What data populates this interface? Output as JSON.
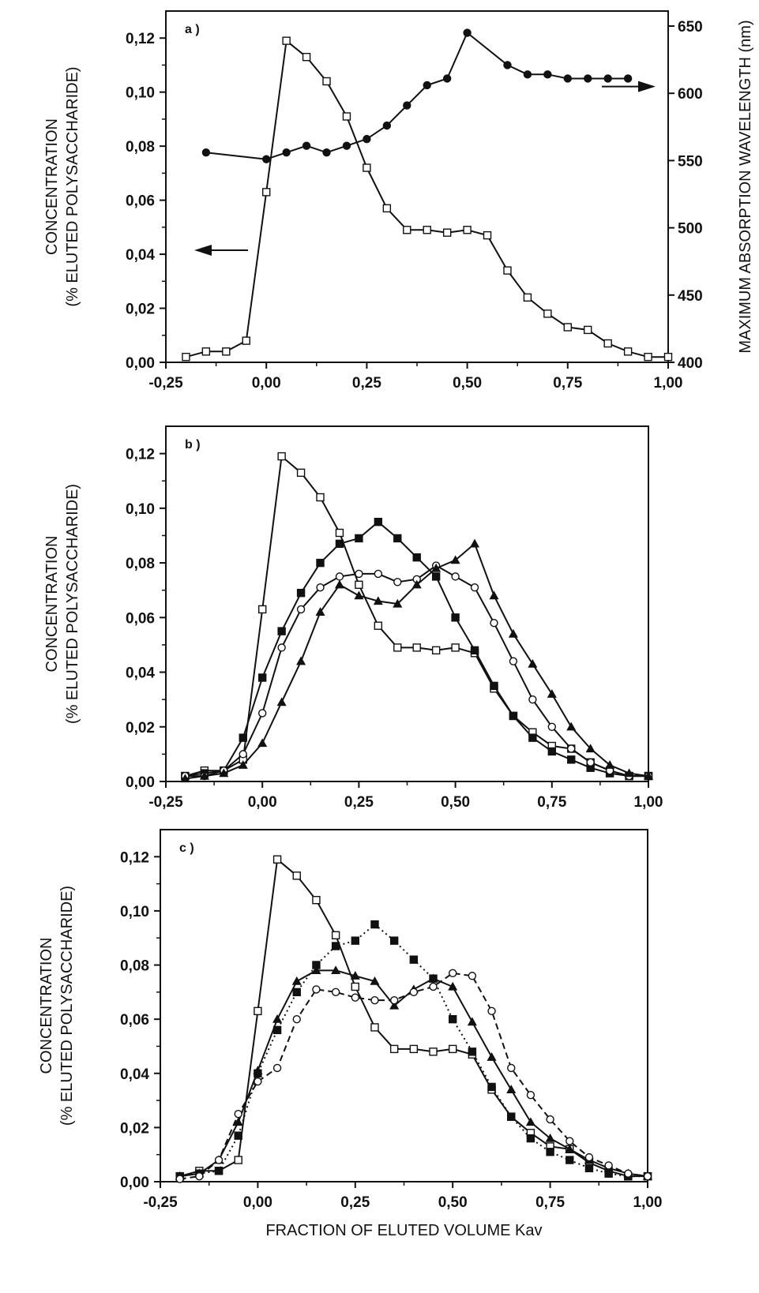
{
  "chart_data": [
    {
      "type": "line",
      "panel_label": "a )",
      "ylabel": "CONCENTRATION",
      "ylabel2": "(% ELUTED POLYSACCHARIDE)",
      "y2label": "MAXIMUM ABSORPTION WAVELENGTH (nm)",
      "xlim": [
        -0.25,
        1.0
      ],
      "ylim": [
        0,
        0.13
      ],
      "y2lim": [
        400,
        650
      ],
      "xticks": [
        "-0,25",
        "0,00",
        "0,25",
        "0,50",
        "0,75",
        "1,00"
      ],
      "yticks": [
        "0,00",
        "0,02",
        "0,04",
        "0,06",
        "0,08",
        "0,10",
        "0,12"
      ],
      "y2ticks": [
        "400",
        "450",
        "500",
        "550",
        "600",
        "650"
      ],
      "annotations": [
        "arrow-left",
        "arrow-right"
      ],
      "series": [
        {
          "marker": "open-square",
          "line": "solid",
          "axis": "left",
          "x": [
            -0.2,
            -0.15,
            -0.1,
            -0.05,
            0.0,
            0.05,
            0.1,
            0.15,
            0.2,
            0.25,
            0.3,
            0.35,
            0.4,
            0.45,
            0.5,
            0.55,
            0.6,
            0.65,
            0.7,
            0.75,
            0.8,
            0.85,
            0.9,
            0.95,
            1.0
          ],
          "y": [
            0.002,
            0.004,
            0.004,
            0.008,
            0.063,
            0.119,
            0.113,
            0.104,
            0.091,
            0.072,
            0.057,
            0.049,
            0.049,
            0.048,
            0.049,
            0.047,
            0.034,
            0.024,
            0.018,
            0.013,
            0.012,
            0.007,
            0.004,
            0.002,
            0.002
          ]
        },
        {
          "marker": "filled-circle",
          "line": "solid",
          "axis": "right",
          "x": [
            -0.15,
            0.0,
            0.05,
            0.1,
            0.15,
            0.2,
            0.25,
            0.3,
            0.35,
            0.4,
            0.45,
            0.5,
            0.6,
            0.65,
            0.7,
            0.75,
            0.8,
            0.85,
            0.9
          ],
          "y": [
            556,
            551,
            556,
            561,
            556,
            561,
            566,
            576,
            591,
            606,
            611,
            645,
            621,
            614,
            614,
            611,
            611,
            611,
            611
          ]
        }
      ]
    },
    {
      "type": "line",
      "panel_label": "b )",
      "ylabel": "CONCENTRATION",
      "ylabel2": "(% ELUTED POLYSACCHARIDE)",
      "xlim": [
        -0.25,
        1.0
      ],
      "ylim": [
        0,
        0.13
      ],
      "xticks": [
        "-0,25",
        "0,00",
        "0,25",
        "0,50",
        "0,75",
        "1,00"
      ],
      "yticks": [
        "0,00",
        "0,02",
        "0,04",
        "0,06",
        "0,08",
        "0,10",
        "0,12"
      ],
      "series": [
        {
          "marker": "open-square",
          "line": "solid",
          "x": [
            -0.2,
            -0.15,
            -0.1,
            -0.05,
            0.0,
            0.05,
            0.1,
            0.15,
            0.2,
            0.25,
            0.3,
            0.35,
            0.4,
            0.45,
            0.5,
            0.55,
            0.6,
            0.65,
            0.7,
            0.75,
            0.8,
            0.85,
            0.9,
            0.95,
            1.0
          ],
          "y": [
            0.002,
            0.004,
            0.004,
            0.008,
            0.063,
            0.119,
            0.113,
            0.104,
            0.091,
            0.072,
            0.057,
            0.049,
            0.049,
            0.048,
            0.049,
            0.047,
            0.034,
            0.024,
            0.018,
            0.013,
            0.012,
            0.007,
            0.004,
            0.002,
            0.002
          ]
        },
        {
          "marker": "filled-square",
          "line": "solid",
          "x": [
            -0.2,
            -0.15,
            -0.1,
            -0.05,
            0.0,
            0.05,
            0.1,
            0.15,
            0.2,
            0.25,
            0.3,
            0.35,
            0.4,
            0.45,
            0.5,
            0.55,
            0.6,
            0.65,
            0.7,
            0.75,
            0.8,
            0.85,
            0.9,
            0.95,
            1.0
          ],
          "y": [
            0.002,
            0.003,
            0.004,
            0.016,
            0.038,
            0.055,
            0.069,
            0.08,
            0.087,
            0.089,
            0.095,
            0.089,
            0.082,
            0.075,
            0.06,
            0.048,
            0.035,
            0.024,
            0.016,
            0.011,
            0.008,
            0.005,
            0.003,
            0.002,
            0.002
          ]
        },
        {
          "marker": "open-circle",
          "line": "solid",
          "x": [
            -0.2,
            -0.15,
            -0.1,
            -0.05,
            0.0,
            0.05,
            0.1,
            0.15,
            0.2,
            0.25,
            0.3,
            0.35,
            0.4,
            0.45,
            0.5,
            0.55,
            0.6,
            0.65,
            0.7,
            0.75,
            0.8,
            0.85,
            0.9,
            0.95,
            1.0
          ],
          "y": [
            0.002,
            0.002,
            0.004,
            0.01,
            0.025,
            0.049,
            0.063,
            0.071,
            0.075,
            0.076,
            0.076,
            0.073,
            0.074,
            0.079,
            0.075,
            0.071,
            0.058,
            0.044,
            0.03,
            0.02,
            0.012,
            0.007,
            0.004,
            0.002,
            0.002
          ]
        },
        {
          "marker": "filled-triangle",
          "line": "solid",
          "x": [
            -0.2,
            -0.15,
            -0.1,
            -0.05,
            0.0,
            0.05,
            0.1,
            0.15,
            0.2,
            0.25,
            0.3,
            0.35,
            0.4,
            0.45,
            0.5,
            0.55,
            0.6,
            0.65,
            0.7,
            0.75,
            0.8,
            0.85,
            0.9,
            0.95,
            1.0
          ],
          "y": [
            0.001,
            0.002,
            0.003,
            0.006,
            0.014,
            0.029,
            0.044,
            0.062,
            0.072,
            0.068,
            0.066,
            0.065,
            0.072,
            0.078,
            0.081,
            0.087,
            0.068,
            0.054,
            0.043,
            0.032,
            0.02,
            0.012,
            0.006,
            0.003,
            0.002
          ]
        }
      ]
    },
    {
      "type": "line",
      "panel_label": "c )",
      "ylabel": "CONCENTRATION",
      "ylabel2": "(% ELUTED POLYSACCHARIDE)",
      "xlabel": "FRACTION OF ELUTED VOLUME Kav",
      "xlim": [
        -0.25,
        1.0
      ],
      "ylim": [
        0,
        0.13
      ],
      "xticks": [
        "-0,25",
        "0,00",
        "0,25",
        "0,50",
        "0,75",
        "1,00"
      ],
      "yticks": [
        "0,00",
        "0,02",
        "0,04",
        "0,06",
        "0,08",
        "0,10",
        "0,12"
      ],
      "series": [
        {
          "marker": "open-square",
          "line": "solid",
          "x": [
            -0.2,
            -0.15,
            -0.1,
            -0.05,
            0.0,
            0.05,
            0.1,
            0.15,
            0.2,
            0.25,
            0.3,
            0.35,
            0.4,
            0.45,
            0.5,
            0.55,
            0.6,
            0.65,
            0.7,
            0.75,
            0.8,
            0.85,
            0.9,
            0.95,
            1.0
          ],
          "y": [
            0.002,
            0.004,
            0.004,
            0.008,
            0.063,
            0.119,
            0.113,
            0.104,
            0.091,
            0.072,
            0.057,
            0.049,
            0.049,
            0.048,
            0.049,
            0.047,
            0.034,
            0.024,
            0.018,
            0.013,
            0.012,
            0.007,
            0.004,
            0.002,
            0.002
          ]
        },
        {
          "marker": "filled-square",
          "line": "dotted",
          "x": [
            -0.2,
            -0.15,
            -0.1,
            -0.05,
            0.0,
            0.05,
            0.1,
            0.15,
            0.2,
            0.25,
            0.3,
            0.35,
            0.4,
            0.45,
            0.5,
            0.55,
            0.6,
            0.65,
            0.7,
            0.75,
            0.8,
            0.85,
            0.9,
            0.95,
            1.0
          ],
          "y": [
            0.002,
            0.003,
            0.004,
            0.017,
            0.04,
            0.056,
            0.07,
            0.08,
            0.087,
            0.089,
            0.095,
            0.089,
            0.082,
            0.075,
            0.06,
            0.048,
            0.035,
            0.024,
            0.016,
            0.011,
            0.008,
            0.005,
            0.003,
            0.002,
            0.002
          ]
        },
        {
          "marker": "filled-triangle",
          "line": "solid",
          "x": [
            -0.2,
            -0.15,
            -0.1,
            -0.05,
            0.0,
            0.05,
            0.1,
            0.15,
            0.2,
            0.25,
            0.3,
            0.35,
            0.4,
            0.45,
            0.5,
            0.55,
            0.6,
            0.65,
            0.7,
            0.75,
            0.8,
            0.85,
            0.9,
            0.95,
            1.0
          ],
          "y": [
            0.002,
            0.003,
            0.008,
            0.022,
            0.041,
            0.06,
            0.074,
            0.078,
            0.078,
            0.076,
            0.074,
            0.065,
            0.071,
            0.075,
            0.072,
            0.059,
            0.046,
            0.034,
            0.022,
            0.016,
            0.012,
            0.008,
            0.005,
            0.003,
            0.002
          ]
        },
        {
          "marker": "open-circle",
          "line": "dashed",
          "x": [
            -0.2,
            -0.15,
            -0.1,
            -0.05,
            0.0,
            0.05,
            0.1,
            0.15,
            0.2,
            0.25,
            0.3,
            0.35,
            0.4,
            0.45,
            0.5,
            0.55,
            0.6,
            0.65,
            0.7,
            0.75,
            0.8,
            0.85,
            0.9,
            0.95,
            1.0
          ],
          "y": [
            0.001,
            0.002,
            0.008,
            0.025,
            0.037,
            0.042,
            0.06,
            0.071,
            0.07,
            0.068,
            0.067,
            0.067,
            0.07,
            0.072,
            0.077,
            0.076,
            0.063,
            0.042,
            0.032,
            0.023,
            0.015,
            0.009,
            0.006,
            0.003,
            0.002
          ]
        }
      ]
    }
  ]
}
